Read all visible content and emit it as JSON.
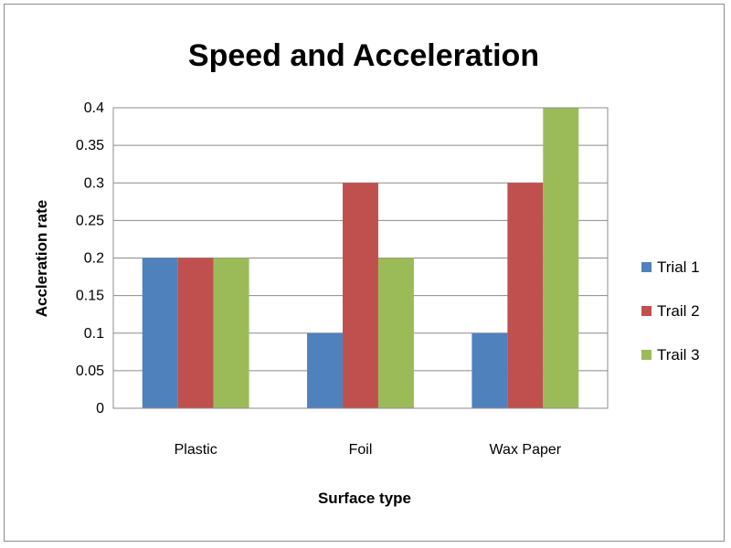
{
  "chart_data": {
    "type": "bar",
    "title": "Speed and Acceleration",
    "xlabel": "Surface type",
    "ylabel": "Accleration rate",
    "categories": [
      "Plastic",
      "Foil",
      "Wax Paper"
    ],
    "series": [
      {
        "name": "Trial 1",
        "color": "#4f81bd",
        "values": [
          0.2,
          0.1,
          0.1
        ]
      },
      {
        "name": "Trail 2",
        "color": "#c0504d",
        "values": [
          0.2,
          0.3,
          0.3
        ]
      },
      {
        "name": "Trail 3",
        "color": "#9bbb59",
        "values": [
          0.2,
          0.2,
          0.4
        ]
      }
    ],
    "ylim": [
      0,
      0.4
    ],
    "yticks": [
      "0",
      "0.05",
      "0.1",
      "0.15",
      "0.2",
      "0.25",
      "0.3",
      "0.35",
      "0.4"
    ],
    "grid": true,
    "legend_position": "right"
  }
}
